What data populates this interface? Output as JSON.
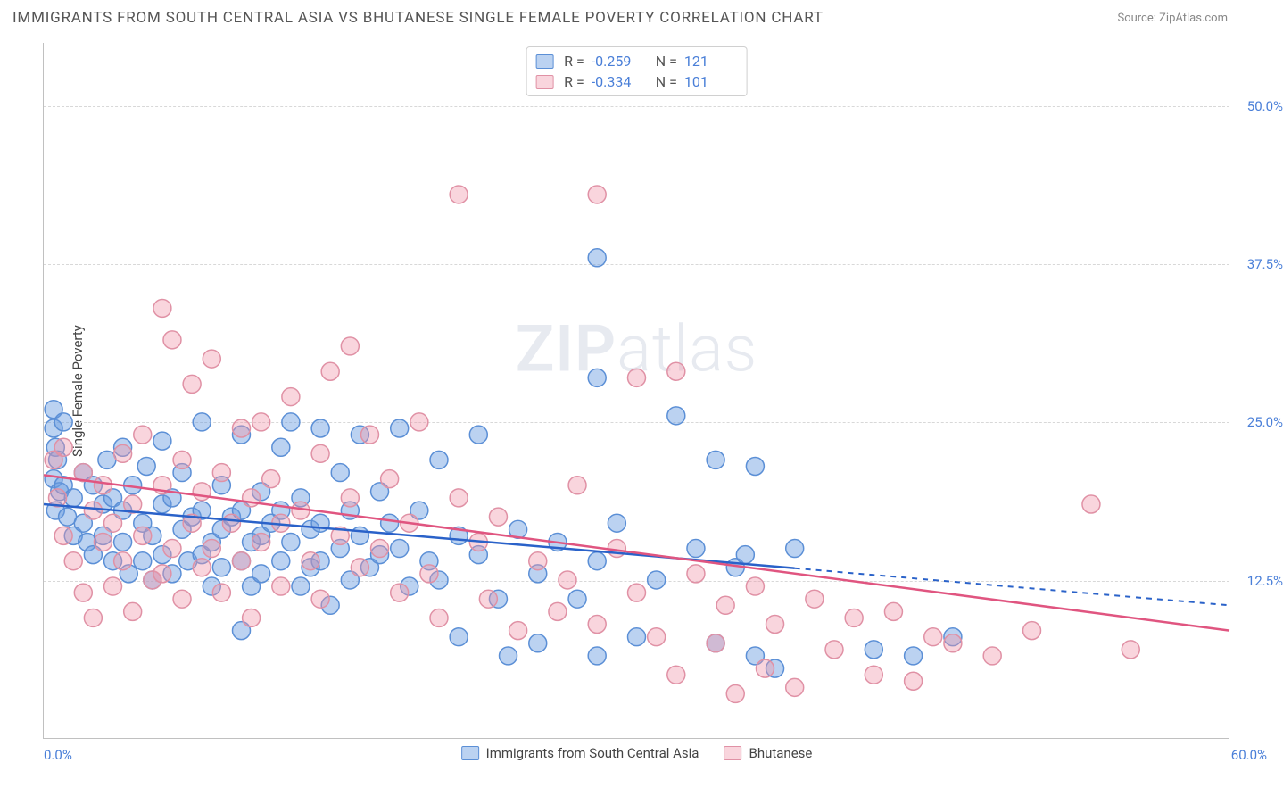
{
  "title": "IMMIGRANTS FROM SOUTH CENTRAL ASIA VS BHUTANESE SINGLE FEMALE POVERTY CORRELATION CHART",
  "source": "Source: ZipAtlas.com",
  "watermark_a": "ZIP",
  "watermark_b": "atlas",
  "y_axis_title": "Single Female Poverty",
  "xlim": [
    0,
    60
  ],
  "ylim": [
    0,
    55
  ],
  "x_tick_left": "0.0%",
  "x_tick_right": "60.0%",
  "y_ticks": [
    {
      "v": 12.5,
      "label": "12.5%"
    },
    {
      "v": 25.0,
      "label": "25.0%"
    },
    {
      "v": 37.5,
      "label": "37.5%"
    },
    {
      "v": 50.0,
      "label": "50.0%"
    }
  ],
  "series": [
    {
      "name": "Immigrants from South Central Asia",
      "fill": "rgba(105,155,225,0.45)",
      "stroke": "#5b8fd6",
      "line_color": "#2a62c9",
      "r_label": "R =",
      "r_value": "-0.259",
      "n_label": "N =",
      "n_value": "121",
      "regression": {
        "y_at_x0": 18.5,
        "y_at_xmax": 10.5,
        "x_dash_from": 38
      },
      "points": [
        [
          0.5,
          26
        ],
        [
          0.5,
          24.5
        ],
        [
          0.6,
          23
        ],
        [
          0.7,
          22
        ],
        [
          0.5,
          20.5
        ],
        [
          0.8,
          19.5
        ],
        [
          0.6,
          18
        ],
        [
          1,
          25
        ],
        [
          1,
          20
        ],
        [
          1.2,
          17.5
        ],
        [
          1.5,
          16
        ],
        [
          1.5,
          19
        ],
        [
          2,
          21
        ],
        [
          2,
          17
        ],
        [
          2.2,
          15.5
        ],
        [
          2.5,
          20
        ],
        [
          2.5,
          14.5
        ],
        [
          3,
          18.5
        ],
        [
          3,
          16
        ],
        [
          3.2,
          22
        ],
        [
          3.5,
          19
        ],
        [
          3.5,
          14
        ],
        [
          4,
          23
        ],
        [
          4,
          18
        ],
        [
          4,
          15.5
        ],
        [
          4.3,
          13
        ],
        [
          4.5,
          20
        ],
        [
          5,
          17
        ],
        [
          5,
          14
        ],
        [
          5.2,
          21.5
        ],
        [
          5.5,
          16
        ],
        [
          5.5,
          12.5
        ],
        [
          6,
          23.5
        ],
        [
          6,
          18.5
        ],
        [
          6,
          14.5
        ],
        [
          6.5,
          19
        ],
        [
          6.5,
          13
        ],
        [
          7,
          16.5
        ],
        [
          7,
          21
        ],
        [
          7.3,
          14
        ],
        [
          7.5,
          17.5
        ],
        [
          8,
          25
        ],
        [
          8,
          18
        ],
        [
          8,
          14.5
        ],
        [
          8.5,
          15.5
        ],
        [
          8.5,
          12
        ],
        [
          9,
          20
        ],
        [
          9,
          16.5
        ],
        [
          9,
          13.5
        ],
        [
          9.5,
          17.5
        ],
        [
          10,
          24
        ],
        [
          10,
          18
        ],
        [
          10,
          14
        ],
        [
          10,
          8.5
        ],
        [
          10.5,
          15.5
        ],
        [
          10.5,
          12
        ],
        [
          11,
          19.5
        ],
        [
          11,
          16
        ],
        [
          11,
          13
        ],
        [
          11.5,
          17
        ],
        [
          12,
          23
        ],
        [
          12,
          18
        ],
        [
          12,
          14
        ],
        [
          12.5,
          25
        ],
        [
          12.5,
          15.5
        ],
        [
          13,
          19
        ],
        [
          13,
          12
        ],
        [
          13.5,
          16.5
        ],
        [
          13.5,
          13.5
        ],
        [
          14,
          24.5
        ],
        [
          14,
          17
        ],
        [
          14,
          14
        ],
        [
          14.5,
          10.5
        ],
        [
          15,
          21
        ],
        [
          15,
          15
        ],
        [
          15.5,
          18
        ],
        [
          15.5,
          12.5
        ],
        [
          16,
          24
        ],
        [
          16,
          16
        ],
        [
          16.5,
          13.5
        ],
        [
          17,
          19.5
        ],
        [
          17,
          14.5
        ],
        [
          17.5,
          17
        ],
        [
          18,
          24.5
        ],
        [
          18,
          15
        ],
        [
          18.5,
          12
        ],
        [
          19,
          18
        ],
        [
          19.5,
          14
        ],
        [
          20,
          22
        ],
        [
          20,
          12.5
        ],
        [
          21,
          16
        ],
        [
          21,
          8
        ],
        [
          22,
          14.5
        ],
        [
          22,
          24
        ],
        [
          23,
          11
        ],
        [
          23.5,
          6.5
        ],
        [
          24,
          16.5
        ],
        [
          25,
          13
        ],
        [
          25,
          7.5
        ],
        [
          26,
          15.5
        ],
        [
          27,
          11
        ],
        [
          28,
          38
        ],
        [
          28,
          28.5
        ],
        [
          28,
          14
        ],
        [
          28,
          6.5
        ],
        [
          29,
          17
        ],
        [
          30,
          8
        ],
        [
          31,
          12.5
        ],
        [
          32,
          25.5
        ],
        [
          33,
          15
        ],
        [
          34,
          22
        ],
        [
          34,
          7.5
        ],
        [
          35,
          13.5
        ],
        [
          35.5,
          14.5
        ],
        [
          36,
          21.5
        ],
        [
          36,
          6.5
        ],
        [
          37,
          5.5
        ],
        [
          38,
          15
        ],
        [
          42,
          7
        ],
        [
          44,
          6.5
        ],
        [
          46,
          8
        ]
      ]
    },
    {
      "name": "Bhutanese",
      "fill": "rgba(240,150,170,0.40)",
      "stroke": "#e091a5",
      "line_color": "#e05580",
      "r_label": "R =",
      "r_value": "-0.334",
      "n_label": "N =",
      "n_value": "101",
      "regression": {
        "y_at_x0": 20.8,
        "y_at_xmax": 8.5,
        "x_dash_from": 60
      },
      "points": [
        [
          0.5,
          22
        ],
        [
          0.7,
          19
        ],
        [
          1,
          23
        ],
        [
          1,
          16
        ],
        [
          1.5,
          14
        ],
        [
          2,
          21
        ],
        [
          2,
          11.5
        ],
        [
          2.5,
          18
        ],
        [
          2.5,
          9.5
        ],
        [
          3,
          20
        ],
        [
          3,
          15.5
        ],
        [
          3.5,
          17
        ],
        [
          3.5,
          12
        ],
        [
          4,
          22.5
        ],
        [
          4,
          14
        ],
        [
          4.5,
          18.5
        ],
        [
          4.5,
          10
        ],
        [
          5,
          24
        ],
        [
          5,
          16
        ],
        [
          5.5,
          12.5
        ],
        [
          6,
          34
        ],
        [
          6,
          20
        ],
        [
          6,
          13
        ],
        [
          6.5,
          31.5
        ],
        [
          6.5,
          15
        ],
        [
          7,
          22
        ],
        [
          7,
          11
        ],
        [
          7.5,
          28
        ],
        [
          7.5,
          17
        ],
        [
          8,
          19.5
        ],
        [
          8,
          13.5
        ],
        [
          8.5,
          30
        ],
        [
          8.5,
          15
        ],
        [
          9,
          21
        ],
        [
          9,
          11.5
        ],
        [
          9.5,
          17
        ],
        [
          10,
          24.5
        ],
        [
          10,
          14
        ],
        [
          10.5,
          19
        ],
        [
          10.5,
          9.5
        ],
        [
          11,
          25
        ],
        [
          11,
          15.5
        ],
        [
          11.5,
          20.5
        ],
        [
          12,
          17
        ],
        [
          12,
          12
        ],
        [
          12.5,
          27
        ],
        [
          13,
          18
        ],
        [
          13.5,
          14
        ],
        [
          14,
          22.5
        ],
        [
          14,
          11
        ],
        [
          14.5,
          29
        ],
        [
          15,
          16
        ],
        [
          15.5,
          31
        ],
        [
          15.5,
          19
        ],
        [
          16,
          13.5
        ],
        [
          16.5,
          24
        ],
        [
          17,
          15
        ],
        [
          17.5,
          20.5
        ],
        [
          18,
          11.5
        ],
        [
          18.5,
          17
        ],
        [
          19,
          25
        ],
        [
          19.5,
          13
        ],
        [
          20,
          9.5
        ],
        [
          21,
          43
        ],
        [
          21,
          19
        ],
        [
          22,
          15.5
        ],
        [
          22.5,
          11
        ],
        [
          23,
          17.5
        ],
        [
          24,
          8.5
        ],
        [
          25,
          14
        ],
        [
          26,
          10
        ],
        [
          26.5,
          12.5
        ],
        [
          27,
          20
        ],
        [
          28,
          43
        ],
        [
          28,
          9
        ],
        [
          29,
          15
        ],
        [
          30,
          28.5
        ],
        [
          30,
          11.5
        ],
        [
          31,
          8
        ],
        [
          32,
          29
        ],
        [
          32,
          5
        ],
        [
          33,
          13
        ],
        [
          34,
          7.5
        ],
        [
          34.5,
          10.5
        ],
        [
          35,
          3.5
        ],
        [
          36,
          12
        ],
        [
          36.5,
          5.5
        ],
        [
          37,
          9
        ],
        [
          38,
          4
        ],
        [
          39,
          11
        ],
        [
          40,
          7
        ],
        [
          41,
          9.5
        ],
        [
          42,
          5
        ],
        [
          43,
          10
        ],
        [
          44,
          4.5
        ],
        [
          45,
          8
        ],
        [
          46,
          7.5
        ],
        [
          48,
          6.5
        ],
        [
          50,
          8.5
        ],
        [
          53,
          18.5
        ],
        [
          55,
          7
        ]
      ]
    }
  ],
  "marker_radius": 10,
  "line_width": 2.5,
  "grid_color": "#d8d8d8",
  "axis_color": "#c0c0c0",
  "background": "#ffffff",
  "label_color": "#4a7fd8"
}
